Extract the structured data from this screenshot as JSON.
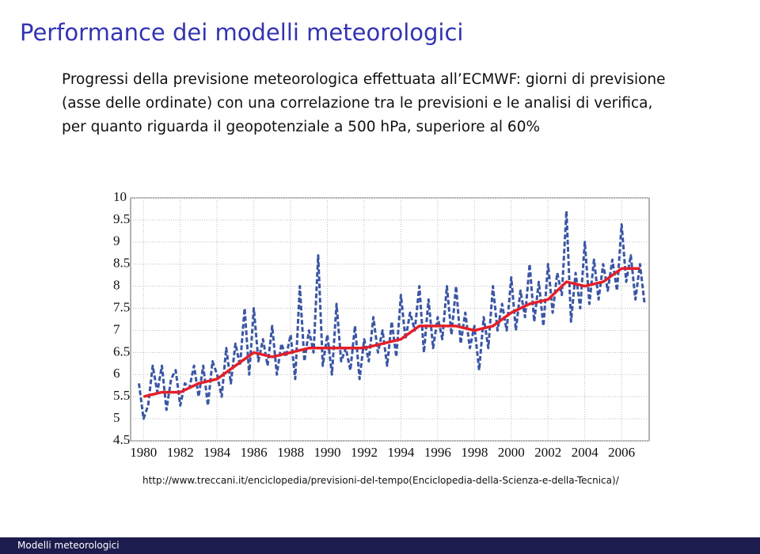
{
  "slide_title": "Performance dei modelli meteorologici",
  "body_text": "Progressi della previsione meteorologica effettuata all’ECMWF: giorni di previsione (asse delle ordinate) con una correlazione tra le previsioni e le analisi di verifica, per quanto riguarda il geopotenziale a 500 hPa, superiore al 60%",
  "chart_data": {
    "type": "line",
    "xlim": [
      1979.3,
      2007.5
    ],
    "ylim": [
      4.5,
      10
    ],
    "xticks": [
      1980,
      1982,
      1984,
      1986,
      1988,
      1990,
      1992,
      1994,
      1996,
      1998,
      2000,
      2002,
      2004,
      2006
    ],
    "yticks": [
      4.5,
      5,
      5.5,
      6,
      6.5,
      7,
      7.5,
      8,
      8.5,
      9,
      9.5,
      10
    ],
    "grid": true,
    "series": [
      {
        "color": "#3a55a4",
        "dashed": true,
        "x": [
          1979.75,
          1980,
          1980.25,
          1980.5,
          1980.75,
          1981,
          1981.25,
          1981.5,
          1981.75,
          1982,
          1982.25,
          1982.5,
          1982.75,
          1983,
          1983.25,
          1983.5,
          1983.75,
          1984,
          1984.25,
          1984.5,
          1984.75,
          1985,
          1985.25,
          1985.5,
          1985.75,
          1986,
          1986.25,
          1986.5,
          1986.75,
          1987,
          1987.25,
          1987.5,
          1987.75,
          1988,
          1988.25,
          1988.5,
          1988.75,
          1989,
          1989.25,
          1989.5,
          1989.75,
          1990,
          1990.25,
          1990.5,
          1990.75,
          1991,
          1991.25,
          1991.5,
          1991.75,
          1992,
          1992.25,
          1992.5,
          1992.75,
          1993,
          1993.25,
          1993.5,
          1993.75,
          1994,
          1994.25,
          1994.5,
          1994.75,
          1995,
          1995.25,
          1995.5,
          1995.75,
          1996,
          1996.25,
          1996.5,
          1996.75,
          1997,
          1997.25,
          1997.5,
          1997.75,
          1998,
          1998.25,
          1998.5,
          1998.75,
          1999,
          1999.25,
          1999.5,
          1999.75,
          2000,
          2000.25,
          2000.5,
          2000.75,
          2001,
          2001.25,
          2001.5,
          2001.75,
          2002,
          2002.25,
          2002.5,
          2002.75,
          2003,
          2003.25,
          2003.5,
          2003.75,
          2004,
          2004.25,
          2004.5,
          2004.75,
          2005,
          2005.25,
          2005.5,
          2005.75,
          2006,
          2006.25,
          2006.5,
          2006.75,
          2007,
          2007.25
        ],
        "values": [
          5.8,
          5.0,
          5.3,
          6.2,
          5.6,
          6.2,
          5.2,
          5.9,
          6.1,
          5.3,
          5.8,
          5.7,
          6.2,
          5.5,
          6.2,
          5.3,
          6.3,
          6.0,
          5.5,
          6.6,
          5.8,
          6.7,
          6.2,
          7.5,
          6.0,
          7.5,
          6.3,
          6.8,
          6.2,
          7.1,
          6.0,
          6.7,
          6.4,
          6.9,
          5.9,
          8.0,
          6.3,
          7.0,
          6.5,
          8.7,
          6.2,
          6.9,
          6.0,
          7.6,
          6.3,
          6.6,
          6.1,
          7.1,
          5.9,
          6.8,
          6.3,
          7.3,
          6.5,
          7.0,
          6.2,
          7.2,
          6.4,
          7.8,
          6.8,
          7.4,
          7.0,
          8.0,
          6.5,
          7.7,
          6.6,
          7.3,
          6.8,
          8.0,
          6.9,
          8.0,
          6.7,
          7.4,
          6.6,
          7.1,
          6.1,
          7.3,
          6.6,
          8.0,
          7.0,
          7.6,
          7.0,
          8.2,
          7.0,
          7.9,
          7.3,
          8.5,
          7.2,
          8.1,
          7.1,
          8.5,
          7.4,
          8.3,
          7.8,
          9.7,
          7.2,
          8.3,
          7.5,
          9.0,
          7.6,
          8.6,
          7.7,
          8.5,
          7.9,
          8.6,
          7.9,
          9.4,
          8.1,
          8.7,
          7.7,
          8.5,
          7.6
        ]
      },
      {
        "color": "#e3202a",
        "dashed": false,
        "x": [
          1980,
          1981,
          1982,
          1983,
          1984,
          1985,
          1986,
          1987,
          1988,
          1989,
          1990,
          1991,
          1992,
          1993,
          1994,
          1995,
          1996,
          1997,
          1998,
          1999,
          2000,
          2001,
          2002,
          2003,
          2004,
          2005,
          2006,
          2007
        ],
        "values": [
          5.5,
          5.6,
          5.6,
          5.8,
          5.9,
          6.2,
          6.5,
          6.4,
          6.5,
          6.6,
          6.6,
          6.6,
          6.6,
          6.7,
          6.8,
          7.1,
          7.1,
          7.1,
          7.0,
          7.1,
          7.4,
          7.6,
          7.7,
          8.1,
          8.0,
          8.1,
          8.4,
          8.4
        ]
      }
    ]
  },
  "source_url": "http://www.treccani.it/enciclopedia/previsioni-del-tempo(Enciclopedia-della-Scienza-e-della-Tecnica)/",
  "footer": "Modelli meteorologici"
}
